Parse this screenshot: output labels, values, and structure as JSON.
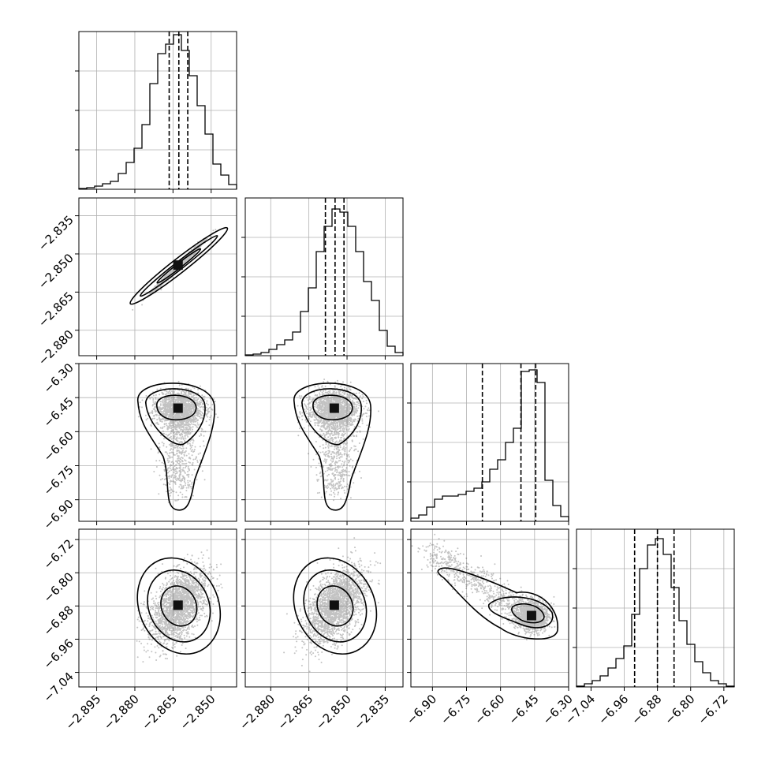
{
  "chart_data": {
    "type": "corner",
    "grid": true,
    "parameters": [
      {
        "index": 0,
        "range": [
          -2.902,
          -2.84
        ],
        "ticks": [
          "−2.895",
          "−2.880",
          "−2.865",
          "−2.850"
        ],
        "tick_values": [
          -2.895,
          -2.88,
          -2.865,
          -2.85
        ],
        "hist_counts": [
          0.005,
          0.01,
          0.02,
          0.035,
          0.05,
          0.1,
          0.17,
          0.26,
          0.41,
          0.67,
          0.86,
          0.92,
          0.98,
          0.88,
          0.72,
          0.53,
          0.35,
          0.16,
          0.09,
          0.03
        ],
        "quantiles": [
          -2.8665,
          -2.8627,
          -2.8592
        ]
      },
      {
        "index": 1,
        "range": [
          -2.89,
          -2.828
        ],
        "ticks": [
          "−2.880",
          "−2.865",
          "−2.850",
          "−2.835"
        ],
        "tick_values": [
          -2.88,
          -2.865,
          -2.85,
          -2.835
        ],
        "hist_counts": [
          0.005,
          0.01,
          0.02,
          0.04,
          0.07,
          0.1,
          0.15,
          0.28,
          0.43,
          0.66,
          0.82,
          0.93,
          0.91,
          0.82,
          0.66,
          0.47,
          0.35,
          0.16,
          0.06,
          0.02
        ],
        "quantiles": [
          -2.8585,
          -2.8547,
          -2.8512
        ]
      },
      {
        "index": 2,
        "range": [
          -6.995,
          -6.3
        ],
        "ticks": [
          "−6.90",
          "−6.75",
          "−6.60",
          "−6.45",
          "−6.30"
        ],
        "tick_values": [
          -6.9,
          -6.75,
          -6.6,
          -6.45,
          -6.3
        ],
        "hist_counts": [
          0.02,
          0.04,
          0.09,
          0.14,
          0.16,
          0.16,
          0.17,
          0.19,
          0.21,
          0.25,
          0.33,
          0.39,
          0.5,
          0.59,
          0.95,
          0.96,
          0.88,
          0.26,
          0.1,
          0.03
        ],
        "quantiles": [
          -6.68,
          -6.51,
          -6.445
        ]
      },
      {
        "index": 3,
        "range": [
          -7.075,
          -6.695
        ],
        "ticks": [
          "−7.04",
          "−6.96",
          "−6.88",
          "−6.80",
          "−6.72"
        ],
        "tick_values": [
          -7.04,
          -6.96,
          -6.88,
          -6.8,
          -6.72
        ],
        "hist_counts": [
          0.005,
          0.02,
          0.04,
          0.07,
          0.12,
          0.18,
          0.26,
          0.46,
          0.75,
          0.9,
          0.94,
          0.84,
          0.63,
          0.42,
          0.27,
          0.16,
          0.09,
          0.04,
          0.02,
          0.005
        ],
        "quantiles": [
          -6.935,
          -6.88,
          -6.84
        ]
      }
    ],
    "pairs": [
      {
        "row": 1,
        "col": 0,
        "shape": "linear",
        "cx": -2.8627,
        "cy": -2.8547,
        "sx": 0.0045,
        "sy": 0.0044,
        "rho": 0.99
      },
      {
        "row": 2,
        "col": 0,
        "shape": "tail",
        "cx": -2.8627,
        "cy": -6.5,
        "sx": 0.005,
        "sy": 0.07,
        "tail_to": -6.85
      },
      {
        "row": 2,
        "col": 1,
        "shape": "tail",
        "cx": -2.8547,
        "cy": -6.5,
        "sx": 0.005,
        "sy": 0.07,
        "tail_to": -6.85
      },
      {
        "row": 3,
        "col": 0,
        "shape": "tilted",
        "cx": -2.8627,
        "cy": -6.88,
        "sx": 0.0055,
        "sy": 0.045,
        "rho": 0.5
      },
      {
        "row": 3,
        "col": 1,
        "shape": "tilted",
        "cx": -2.8547,
        "cy": -6.88,
        "sx": 0.0055,
        "sy": 0.045,
        "rho": 0.5
      },
      {
        "row": 3,
        "col": 2,
        "shape": "banana",
        "cx": -6.46,
        "cy": -6.905,
        "sx": 0.06,
        "sy": 0.035,
        "tail_from": [
          -6.92,
          -6.75
        ]
      }
    ]
  }
}
